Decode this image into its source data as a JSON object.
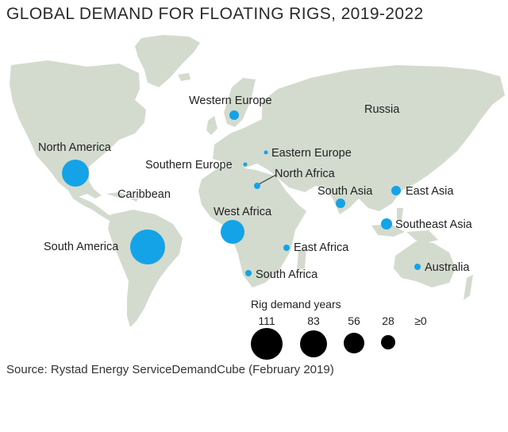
{
  "title": "GLOBAL DEMAND FOR FLOATING RIGS, 2019-2022",
  "source": "Source: Rystad Energy ServiceDemandCube (February 2019)",
  "colors": {
    "land": "#d3dbcf",
    "marker": "#14a3e6",
    "legend_marker": "#000000",
    "text": "#222222"
  },
  "regions": [
    {
      "name": "Western Europe",
      "label": "Western Europe"
    },
    {
      "name": "Russia",
      "label": "Russia"
    },
    {
      "name": "North America",
      "label": "North America"
    },
    {
      "name": "Eastern Europe",
      "label": "Eastern Europe"
    },
    {
      "name": "Southern Europe",
      "label": "Southern Europe"
    },
    {
      "name": "North Africa",
      "label": "North Africa"
    },
    {
      "name": "Caribbean",
      "label": "Caribbean"
    },
    {
      "name": "South Asia",
      "label": "South Asia"
    },
    {
      "name": "East Asia",
      "label": "East Asia"
    },
    {
      "name": "West Africa",
      "label": "West Africa"
    },
    {
      "name": "Southeast Asia",
      "label": "Southeast Asia"
    },
    {
      "name": "South America",
      "label": "South America"
    },
    {
      "name": "East Africa",
      "label": "East Africa"
    },
    {
      "name": "Australia",
      "label": "Australia"
    },
    {
      "name": "South Africa",
      "label": "South Africa"
    }
  ],
  "legend": {
    "title": "Rig demand years",
    "items": [
      {
        "label": "111",
        "value": 111
      },
      {
        "label": "83",
        "value": 83
      },
      {
        "label": "56",
        "value": 56
      },
      {
        "label": "28",
        "value": 28
      },
      {
        "label": "≥0",
        "value": 0
      }
    ]
  }
}
